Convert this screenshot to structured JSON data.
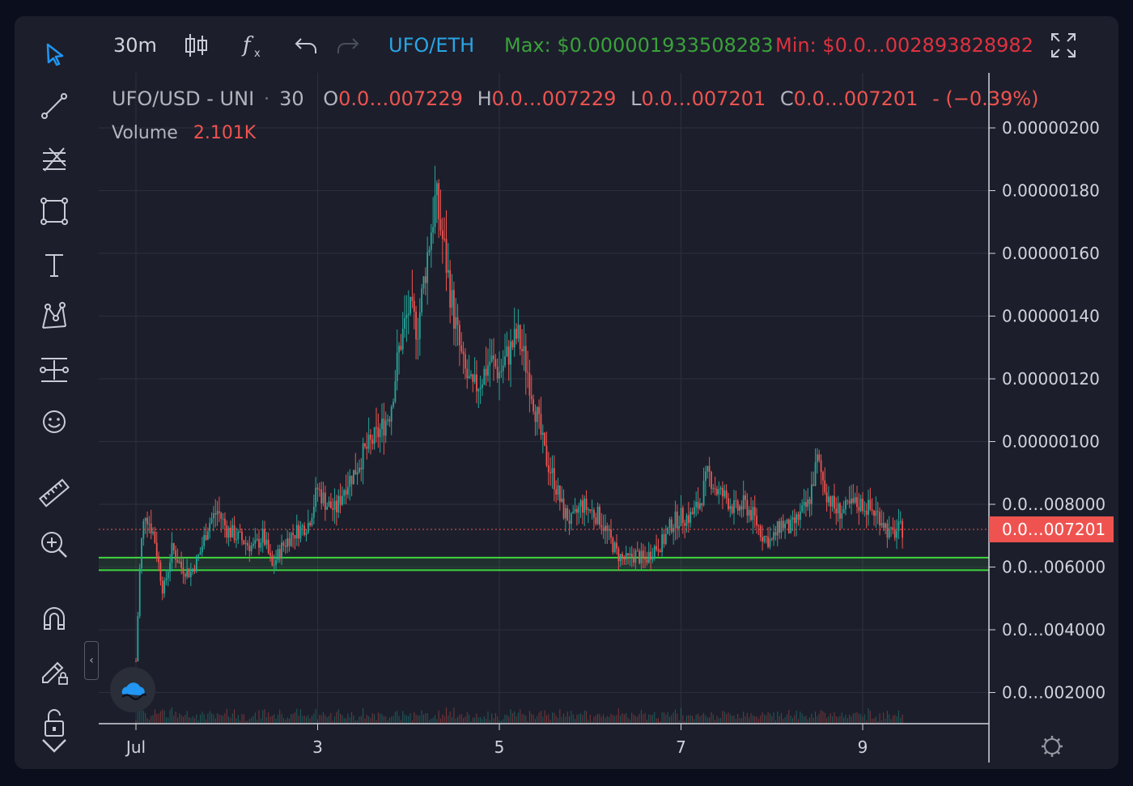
{
  "topbar": {
    "interval": "30m",
    "pair": "UFO/ETH",
    "max_label": "Max: $0.000001933508283",
    "min_label": "Min: $0.0…002893828982"
  },
  "legend": {
    "symbol": "UFO/USD - UNI",
    "dot": "·",
    "interval": "30",
    "o_key": "O",
    "o_val": "0.0…007229",
    "h_key": "H",
    "h_val": "0.0…007229",
    "l_key": "L",
    "l_val": "0.0…007201",
    "c_key": "C",
    "c_val": "0.0…007201",
    "change": "- (−0.39%)",
    "volume_label": "Volume",
    "volume_val": "2.101K"
  },
  "colors": {
    "up": "#26a69a",
    "down": "#ef5350",
    "accent": "#2196f3",
    "support": "#4caf50",
    "max": "#3aa13a",
    "min": "#e0313f"
  },
  "icons": [
    "cursor-icon",
    "trend-line-icon",
    "fib-icon",
    "rectangle-icon",
    "text-icon",
    "pattern-icon",
    "measure-icon",
    "emoji-icon",
    "ruler-icon",
    "zoom-in-icon",
    "magnet-icon",
    "lock-edit-icon",
    "unlock-icon",
    "chevron-down-icon",
    "candles-icon",
    "indicator-icon",
    "undo-icon",
    "redo-icon",
    "fullscreen-icon",
    "settings-icon"
  ],
  "chart_data": {
    "type": "candlestick",
    "symbol": "UFO/USD - UNI",
    "y_axis_labels": [
      "0.00000200",
      "0.00000180",
      "0.00000160",
      "0.00000140",
      "0.00000120",
      "0.00000100",
      "0.0…008000",
      "0.0…006000",
      "0.0…004000",
      "0.0…002000"
    ],
    "y_ticks": [
      2e-06,
      1.8e-06,
      1.6e-06,
      1.4e-06,
      1.2e-06,
      1e-06,
      8e-07,
      6e-07,
      4e-07,
      2e-07
    ],
    "current_price_label": "0.0…007201",
    "current_price": 7.201e-07,
    "x_axis_labels": [
      "Jul",
      "3",
      "5",
      "7",
      "9"
    ],
    "x_ticks_day": [
      1,
      3,
      5,
      7,
      9
    ],
    "x_range_day": [
      0.0,
      10.4
    ],
    "ylim": [
      0.0,
      2.1e-06
    ],
    "support_zone": [
      5.9e-07,
      6.3e-07
    ],
    "close_path": [
      [
        1.0,
        3e-07
      ],
      [
        1.05,
        6.5e-07
      ],
      [
        1.1,
        7.8e-07
      ],
      [
        1.2,
        7e-07
      ],
      [
        1.3,
        5.2e-07
      ],
      [
        1.4,
        6.6e-07
      ],
      [
        1.5,
        6e-07
      ],
      [
        1.6,
        5.8e-07
      ],
      [
        1.7,
        6.4e-07
      ],
      [
        1.8,
        7.4e-07
      ],
      [
        1.9,
        7.8e-07
      ],
      [
        2.0,
        7.2e-07
      ],
      [
        2.1,
        7e-07
      ],
      [
        2.2,
        6.8e-07
      ],
      [
        2.3,
        6.6e-07
      ],
      [
        2.4,
        7e-07
      ],
      [
        2.5,
        6e-07
      ],
      [
        2.6,
        6.6e-07
      ],
      [
        2.7,
        7e-07
      ],
      [
        2.8,
        7.2e-07
      ],
      [
        2.9,
        7.4e-07
      ],
      [
        3.0,
        8.5e-07
      ],
      [
        3.1,
        8e-07
      ],
      [
        3.2,
        7.8e-07
      ],
      [
        3.3,
        8.6e-07
      ],
      [
        3.4,
        9e-07
      ],
      [
        3.5,
        9.6e-07
      ],
      [
        3.6,
        1e-06
      ],
      [
        3.7,
        1.04e-06
      ],
      [
        3.8,
        1.1e-06
      ],
      [
        3.9,
        1.3e-06
      ],
      [
        4.0,
        1.42e-06
      ],
      [
        4.1,
        1.36e-06
      ],
      [
        4.2,
        1.58e-06
      ],
      [
        4.3,
        1.78e-06
      ],
      [
        4.4,
        1.6e-06
      ],
      [
        4.5,
        1.4e-06
      ],
      [
        4.6,
        1.24e-06
      ],
      [
        4.7,
        1.16e-06
      ],
      [
        4.8,
        1.2e-06
      ],
      [
        4.9,
        1.26e-06
      ],
      [
        5.0,
        1.22e-06
      ],
      [
        5.1,
        1.28e-06
      ],
      [
        5.2,
        1.34e-06
      ],
      [
        5.3,
        1.24e-06
      ],
      [
        5.4,
        1.1e-06
      ],
      [
        5.5,
        9.6e-07
      ],
      [
        5.6,
        8.8e-07
      ],
      [
        5.7,
        7.8e-07
      ],
      [
        5.8,
        7.4e-07
      ],
      [
        5.9,
        8e-07
      ],
      [
        6.0,
        7.8e-07
      ],
      [
        6.1,
        7.6e-07
      ],
      [
        6.2,
        7e-07
      ],
      [
        6.3,
        6.4e-07
      ],
      [
        6.4,
        6.2e-07
      ],
      [
        6.5,
        6.4e-07
      ],
      [
        6.6,
        6.2e-07
      ],
      [
        6.7,
        6.6e-07
      ],
      [
        6.8,
        6.8e-07
      ],
      [
        6.9,
        7.4e-07
      ],
      [
        7.0,
        7.6e-07
      ],
      [
        7.1,
        7.6e-07
      ],
      [
        7.2,
        8e-07
      ],
      [
        7.3,
        9e-07
      ],
      [
        7.4,
        8.4e-07
      ],
      [
        7.5,
        8.2e-07
      ],
      [
        7.6,
        7.8e-07
      ],
      [
        7.7,
        8e-07
      ],
      [
        7.8,
        7.6e-07
      ],
      [
        7.9,
        7e-07
      ],
      [
        8.0,
        6.8e-07
      ],
      [
        8.1,
        7.4e-07
      ],
      [
        8.2,
        7.2e-07
      ],
      [
        8.3,
        7.6e-07
      ],
      [
        8.4,
        8e-07
      ],
      [
        8.5,
        9.4e-07
      ],
      [
        8.6,
        8.4e-07
      ],
      [
        8.7,
        7.8e-07
      ],
      [
        8.8,
        7.8e-07
      ],
      [
        8.9,
        8e-07
      ],
      [
        9.0,
        8e-07
      ],
      [
        9.1,
        7.8e-07
      ],
      [
        9.2,
        7.6e-07
      ],
      [
        9.3,
        7e-07
      ],
      [
        9.4,
        7.2e-07
      ],
      [
        9.45,
        7.201e-07
      ]
    ]
  }
}
